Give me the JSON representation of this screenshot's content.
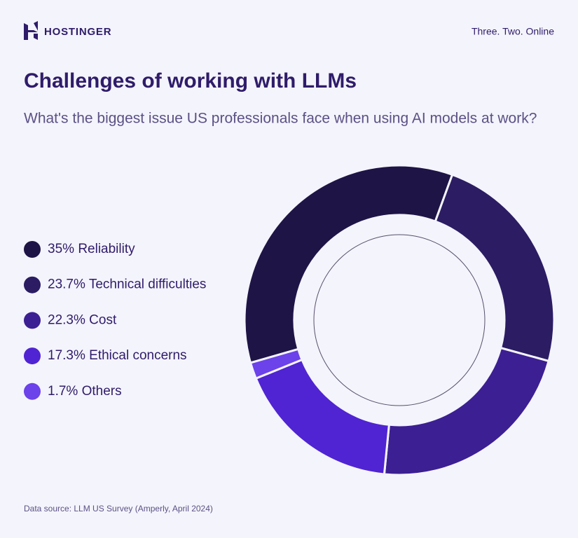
{
  "header": {
    "brand": "HOSTINGER",
    "tagline": "Three. Two. Online"
  },
  "chart_data": {
    "type": "donut",
    "title": "Challenges of working with LLMs",
    "subtitle": "What's the biggest issue US professionals face when using AI models at work?",
    "source": "Data source: LLM US Survey (Amperly, April 2024)",
    "categories": [
      "Reliability",
      "Technical difficulties",
      "Cost",
      "Ethical concerns",
      "Others"
    ],
    "values": [
      35,
      23.7,
      22.3,
      17.3,
      1.7
    ],
    "value_labels": [
      "35%",
      "23.7%",
      "22.3%",
      "17.3%",
      "1.7%"
    ],
    "colors": [
      "#1e1446",
      "#2b1c63",
      "#3c1f92",
      "#5024d2",
      "#6c42ea"
    ],
    "legend": "left"
  }
}
